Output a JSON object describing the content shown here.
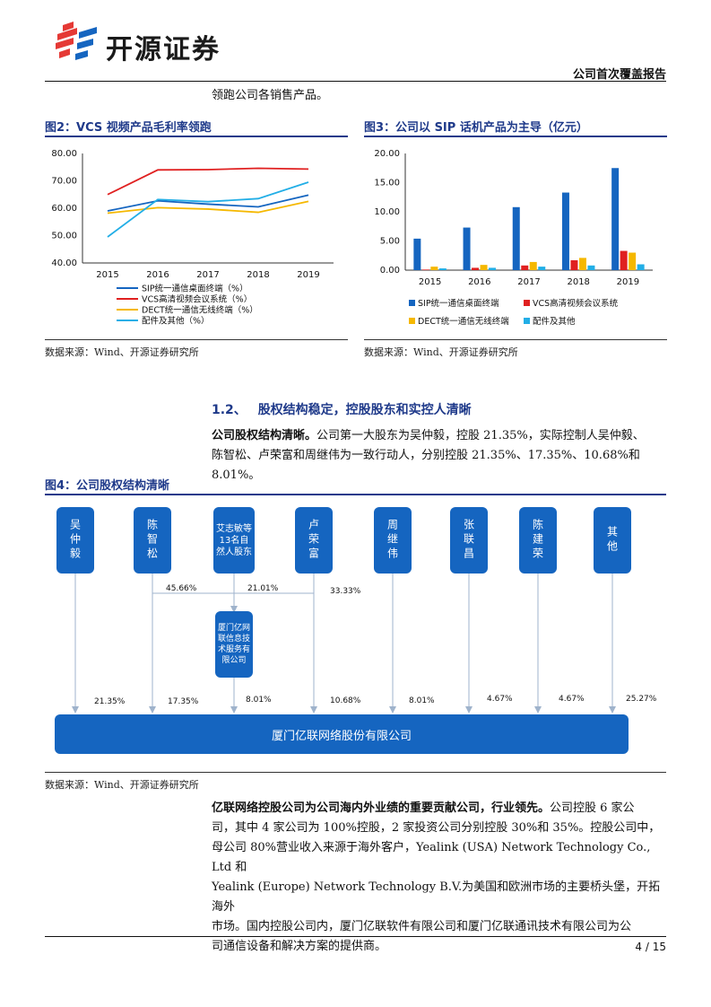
{
  "header": {
    "company_logo_text": "开源证券",
    "report_type": "公司首次覆盖报告"
  },
  "intro_line": "领跑公司各销售产品。",
  "fig2": {
    "title": "图2：VCS 视频产品毛利率领跑",
    "source": "数据来源：Wind、开源证券研究所"
  },
  "fig3": {
    "title": "图3：公司以 SIP 话机产品为主导（亿元）",
    "source": "数据来源：Wind、开源证券研究所"
  },
  "chart_data": [
    {
      "type": "line",
      "x": [
        "2015",
        "2016",
        "2017",
        "2018",
        "2019"
      ],
      "ylim": [
        40,
        80
      ],
      "yticks": [
        "40.00",
        "50.00",
        "60.00",
        "70.00",
        "80.00"
      ],
      "series": [
        {
          "name": "SIP统一通信桌面终端（%）",
          "color": "#1565c0",
          "values": [
            59.0,
            62.7,
            61.5,
            60.5,
            64.8
          ]
        },
        {
          "name": "VCS高清视频会议系统（%）",
          "color": "#e02020",
          "values": [
            65.0,
            74.0,
            74.1,
            74.6,
            74.3
          ]
        },
        {
          "name": "DECT统一通信无线终端（%）",
          "color": "#f5b800",
          "values": [
            58.2,
            60.2,
            59.7,
            58.5,
            62.5
          ]
        },
        {
          "name": "配件及其他（%）",
          "color": "#22aee6",
          "values": [
            49.5,
            63.2,
            62.4,
            63.5,
            69.5
          ]
        }
      ],
      "grid": false,
      "legend": "bottom"
    },
    {
      "type": "bar",
      "categories": [
        "2015",
        "2016",
        "2017",
        "2018",
        "2019"
      ],
      "ylim": [
        0,
        20
      ],
      "yticks": [
        "0.00",
        "5.00",
        "10.00",
        "15.00",
        "20.00"
      ],
      "series": [
        {
          "name": "SIP统一通信桌面终端",
          "color": "#1565c0",
          "values": [
            5.4,
            7.3,
            10.8,
            13.3,
            17.5
          ]
        },
        {
          "name": "VCS高清视频会议系统",
          "color": "#e02020",
          "values": [
            0.1,
            0.4,
            0.8,
            1.7,
            3.3
          ]
        },
        {
          "name": "DECT统一通信无线终端",
          "color": "#f5b800",
          "values": [
            0.6,
            0.9,
            1.4,
            2.1,
            3.0
          ]
        },
        {
          "name": "配件及其他",
          "color": "#22aee6",
          "values": [
            0.3,
            0.4,
            0.6,
            0.8,
            1.0
          ]
        }
      ],
      "grid": false,
      "legend": "bottom"
    }
  ],
  "section": {
    "number": "1.2、",
    "title": "股权结构稳定，控股股东和实控人清晰"
  },
  "para1": {
    "lead": "公司股权结构清晰。",
    "line1_rest": "公司第一大股东为吴仲毅，控股 21.35%，实际控制人吴仲毅、",
    "line2": "陈智松、卢荣富和周继伟为一致行动人，分别控股 21.35%、17.35%、10.68%和 8.01%。"
  },
  "fig4": {
    "title": "图4：公司股权结构清晰",
    "source": "数据来源：Wind、开源证券研究所",
    "shareholders": [
      "吴仲毅",
      "陈智松",
      "艾志敏等13名自然人股东",
      "卢荣富",
      "周继伟",
      "张联昌",
      "陈建荣",
      "其他"
    ],
    "intermediate": "厦门亿网联信息技术服务有限公司",
    "intermediate_stakes": [
      "45.66%",
      "21.01%",
      "33.33%"
    ],
    "direct_stakes": [
      "21.35%",
      "17.35%",
      "8.01%",
      "10.68%",
      "8.01%",
      "4.67%",
      "4.67%",
      "25.27%"
    ],
    "company": "厦门亿联网络股份有限公司"
  },
  "para2": {
    "lead": "亿联网络控股公司为公司海内外业绩的重要贡献公司，行业领先。",
    "line1_rest": "公司控股 6 家公",
    "line2": "司，其中 4 家公司为 100%控股，2 家投资公司分别控股 30%和 35%。控股公司中，",
    "line3": "母公司 80%营业收入来源于海外客户，Yealink (USA) Network Technology Co., Ltd 和",
    "line4": "Yealink (Europe) Network Technology B.V.为美国和欧洲市场的主要桥头堡，开拓海外",
    "line5": "市场。国内控股公司内，厦门亿联软件有限公司和厦门亿联通讯技术有限公司为公",
    "line6": "司通信设备和解决方案的提供商。"
  },
  "footer": {
    "page": "4 / 15"
  }
}
